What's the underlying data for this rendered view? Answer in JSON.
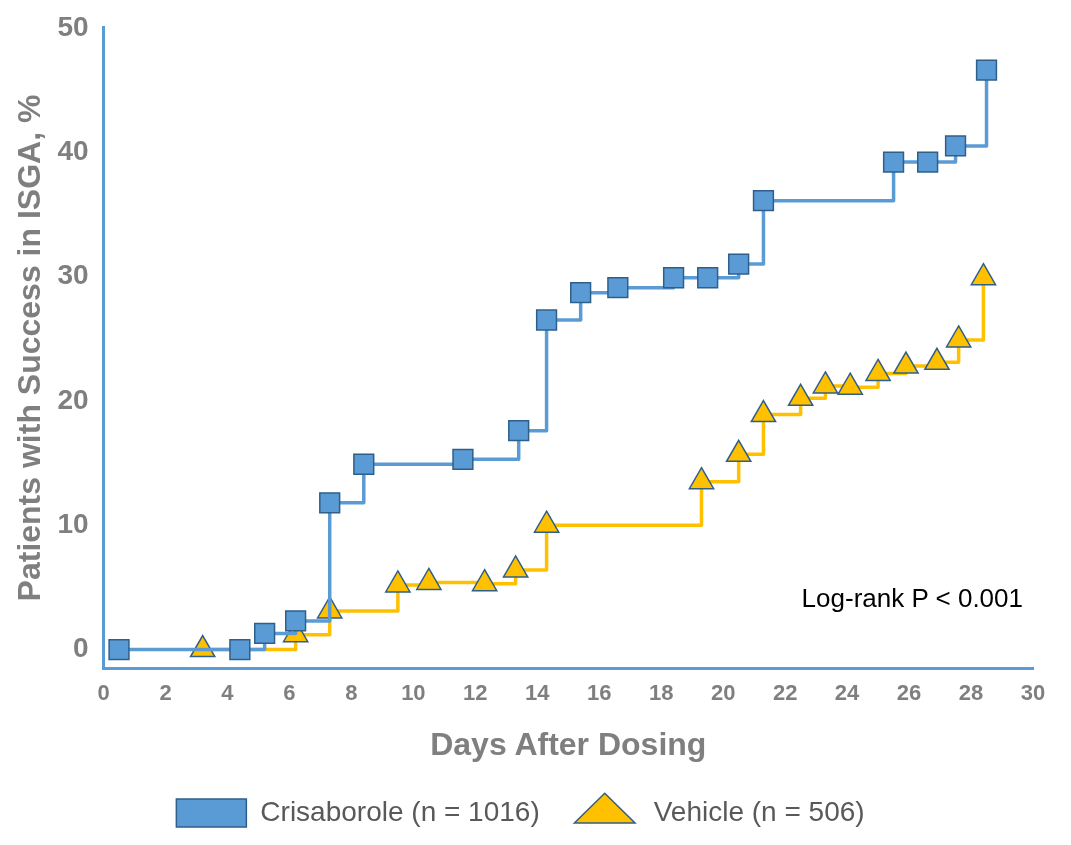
{
  "chart_data": {
    "type": "step",
    "xlabel": "Days After Dosing",
    "ylabel": "Patients with Success in ISGA, %",
    "xlim": [
      0,
      30
    ],
    "xticks": [
      0,
      2,
      4,
      6,
      8,
      10,
      12,
      14,
      16,
      18,
      20,
      22,
      24,
      26,
      28,
      30
    ],
    "ylim": [
      -1.5,
      50
    ],
    "yticks": [
      0,
      10,
      20,
      30,
      40,
      50
    ],
    "grid": false,
    "legend": "bottom",
    "annotations": [
      "Log-rank P < 0.001"
    ],
    "series": [
      {
        "name": "Crisaborole (n = 1016)",
        "color": "#5b9bd5",
        "marker": "square",
        "x": [
          0.5,
          4.4,
          5.2,
          6.2,
          7.3,
          8.4,
          11.6,
          13.4,
          14.3,
          15.4,
          16.6,
          18.4,
          19.5,
          20.5,
          21.3,
          25.5,
          26.6,
          27.5,
          28.5
        ],
        "values": [
          0,
          0,
          1.3,
          2.3,
          11.8,
          14.9,
          15.3,
          17.6,
          26.5,
          28.7,
          29.1,
          29.9,
          29.9,
          31,
          36.1,
          39.2,
          39.2,
          40.5,
          46.6
        ]
      },
      {
        "name": "Vehicle (n = 506)",
        "color": "#ffc000",
        "marker": "triangle",
        "x": [
          3.2,
          6.2,
          7.3,
          9.5,
          10.5,
          12.3,
          13.3,
          14.3,
          19.3,
          20.5,
          21.3,
          22.5,
          23.3,
          24.1,
          25,
          25.9,
          26.9,
          27.6,
          28.4
        ],
        "values": [
          0,
          1.2,
          3.1,
          5.2,
          5.4,
          5.3,
          6.4,
          10,
          13.5,
          15.7,
          18.9,
          20.2,
          21.2,
          21.1,
          22.2,
          22.8,
          23.1,
          24.9,
          29.9
        ]
      }
    ]
  }
}
